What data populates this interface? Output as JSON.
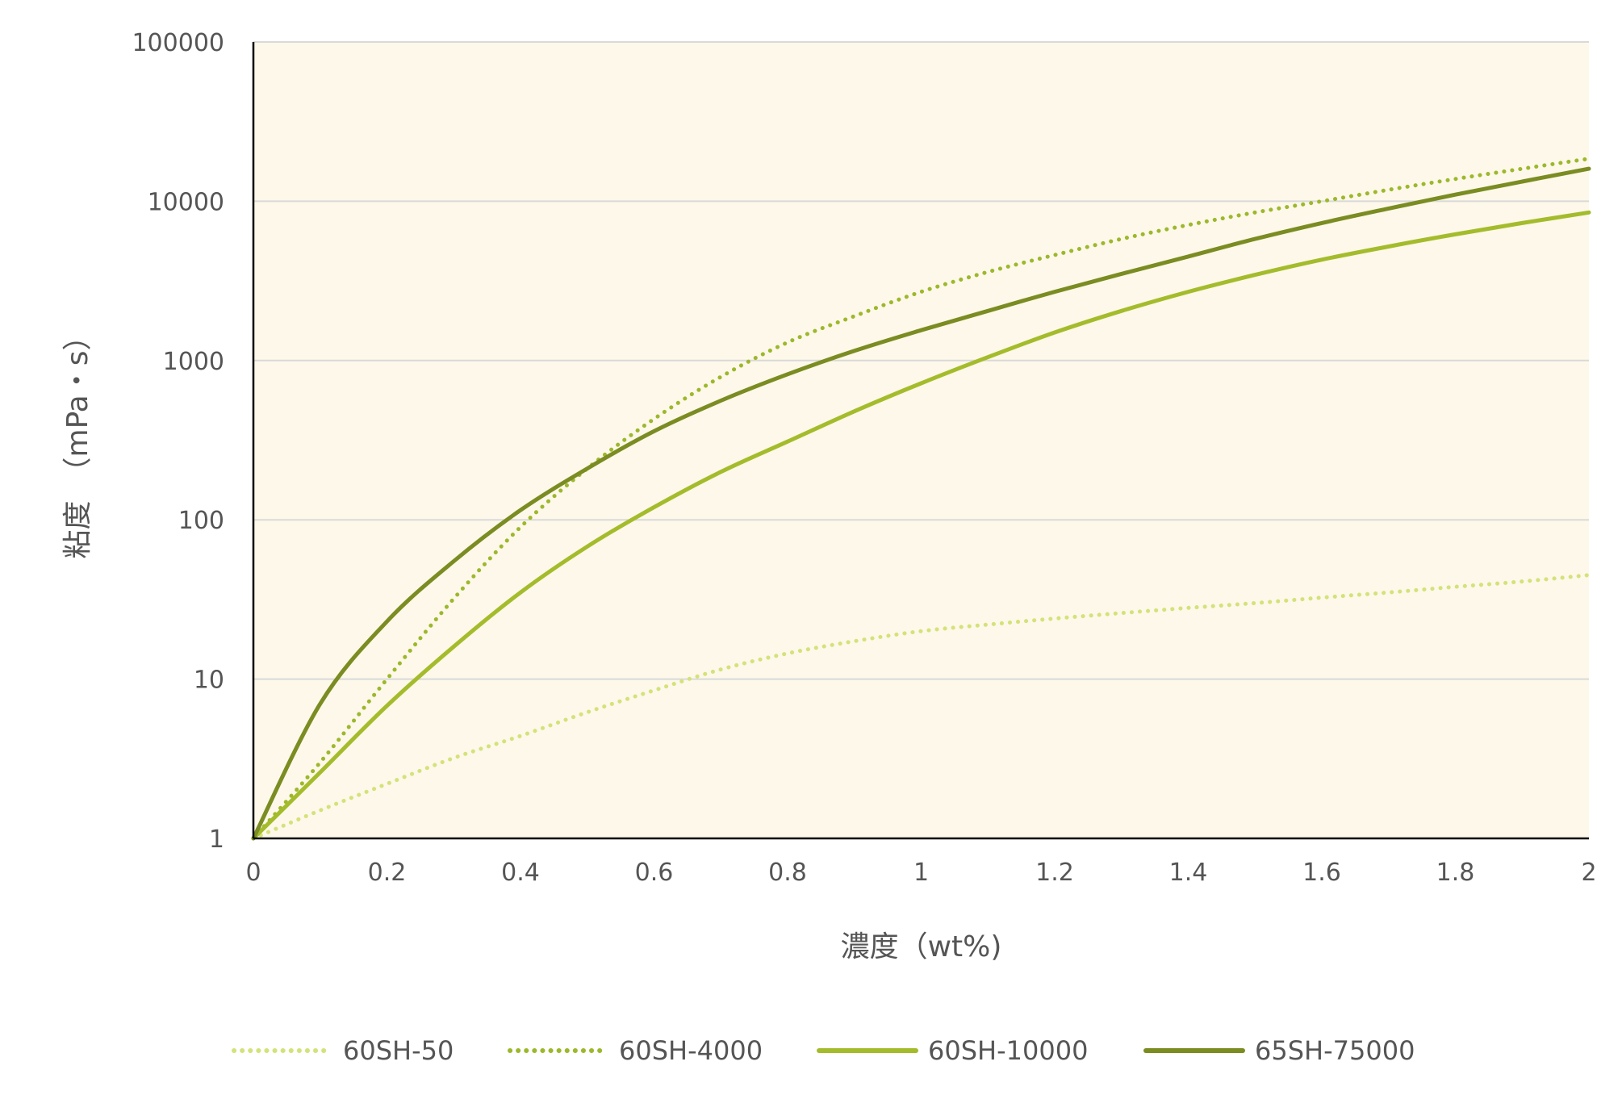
{
  "chart_data": {
    "type": "line",
    "xlabel": "濃度（wt%)",
    "ylabel": "粘度　（mPa・s）",
    "xlim": [
      0,
      2
    ],
    "ylim": [
      1,
      100000
    ],
    "yscale": "log",
    "x_ticks": [
      "0",
      "0.2",
      "0.4",
      "0.6",
      "0.8",
      "1",
      "1.2",
      "1.4",
      "1.6",
      "1.8",
      "2"
    ],
    "y_ticks": [
      "1",
      "10",
      "100",
      "1000",
      "10000",
      "100000"
    ],
    "grid": "horizontal",
    "legend": "bottom",
    "x": [
      0,
      0.1,
      0.2,
      0.3,
      0.4,
      0.5,
      0.6,
      0.7,
      0.8,
      0.9,
      1.0,
      1.1,
      1.2,
      1.3,
      1.4,
      1.5,
      1.6,
      1.7,
      1.8,
      1.9,
      2.0
    ],
    "series": [
      {
        "name": "60SH-50",
        "color": "#d4e27a",
        "dash": "dotted",
        "values": [
          1,
          1.5,
          2.2,
          3.2,
          4.4,
          6.2,
          8.5,
          11.5,
          14.5,
          17.3,
          20,
          22,
          24,
          26,
          28,
          30,
          32.5,
          35,
          38,
          41,
          45
        ]
      },
      {
        "name": "60SH-4000",
        "color": "#9cb82c",
        "dash": "dotted",
        "values": [
          1,
          3,
          10,
          32,
          90,
          210,
          430,
          790,
          1300,
          1900,
          2700,
          3600,
          4600,
          5800,
          7100,
          8500,
          10000,
          11800,
          13800,
          16000,
          18500
        ]
      },
      {
        "name": "60SH-10000",
        "color": "#a4bc2c",
        "dash": "solid",
        "values": [
          1,
          2.6,
          6.8,
          16,
          35,
          68,
          120,
          200,
          310,
          480,
          720,
          1050,
          1500,
          2050,
          2700,
          3450,
          4300,
          5200,
          6200,
          7300,
          8500
        ]
      },
      {
        "name": "65SH-75000",
        "color": "#7b8c22",
        "dash": "solid",
        "values": [
          1,
          7,
          23,
          55,
          115,
          210,
          360,
          560,
          820,
          1150,
          1550,
          2050,
          2700,
          3500,
          4500,
          5800,
          7300,
          9000,
          11000,
          13300,
          16000
        ]
      }
    ]
  }
}
